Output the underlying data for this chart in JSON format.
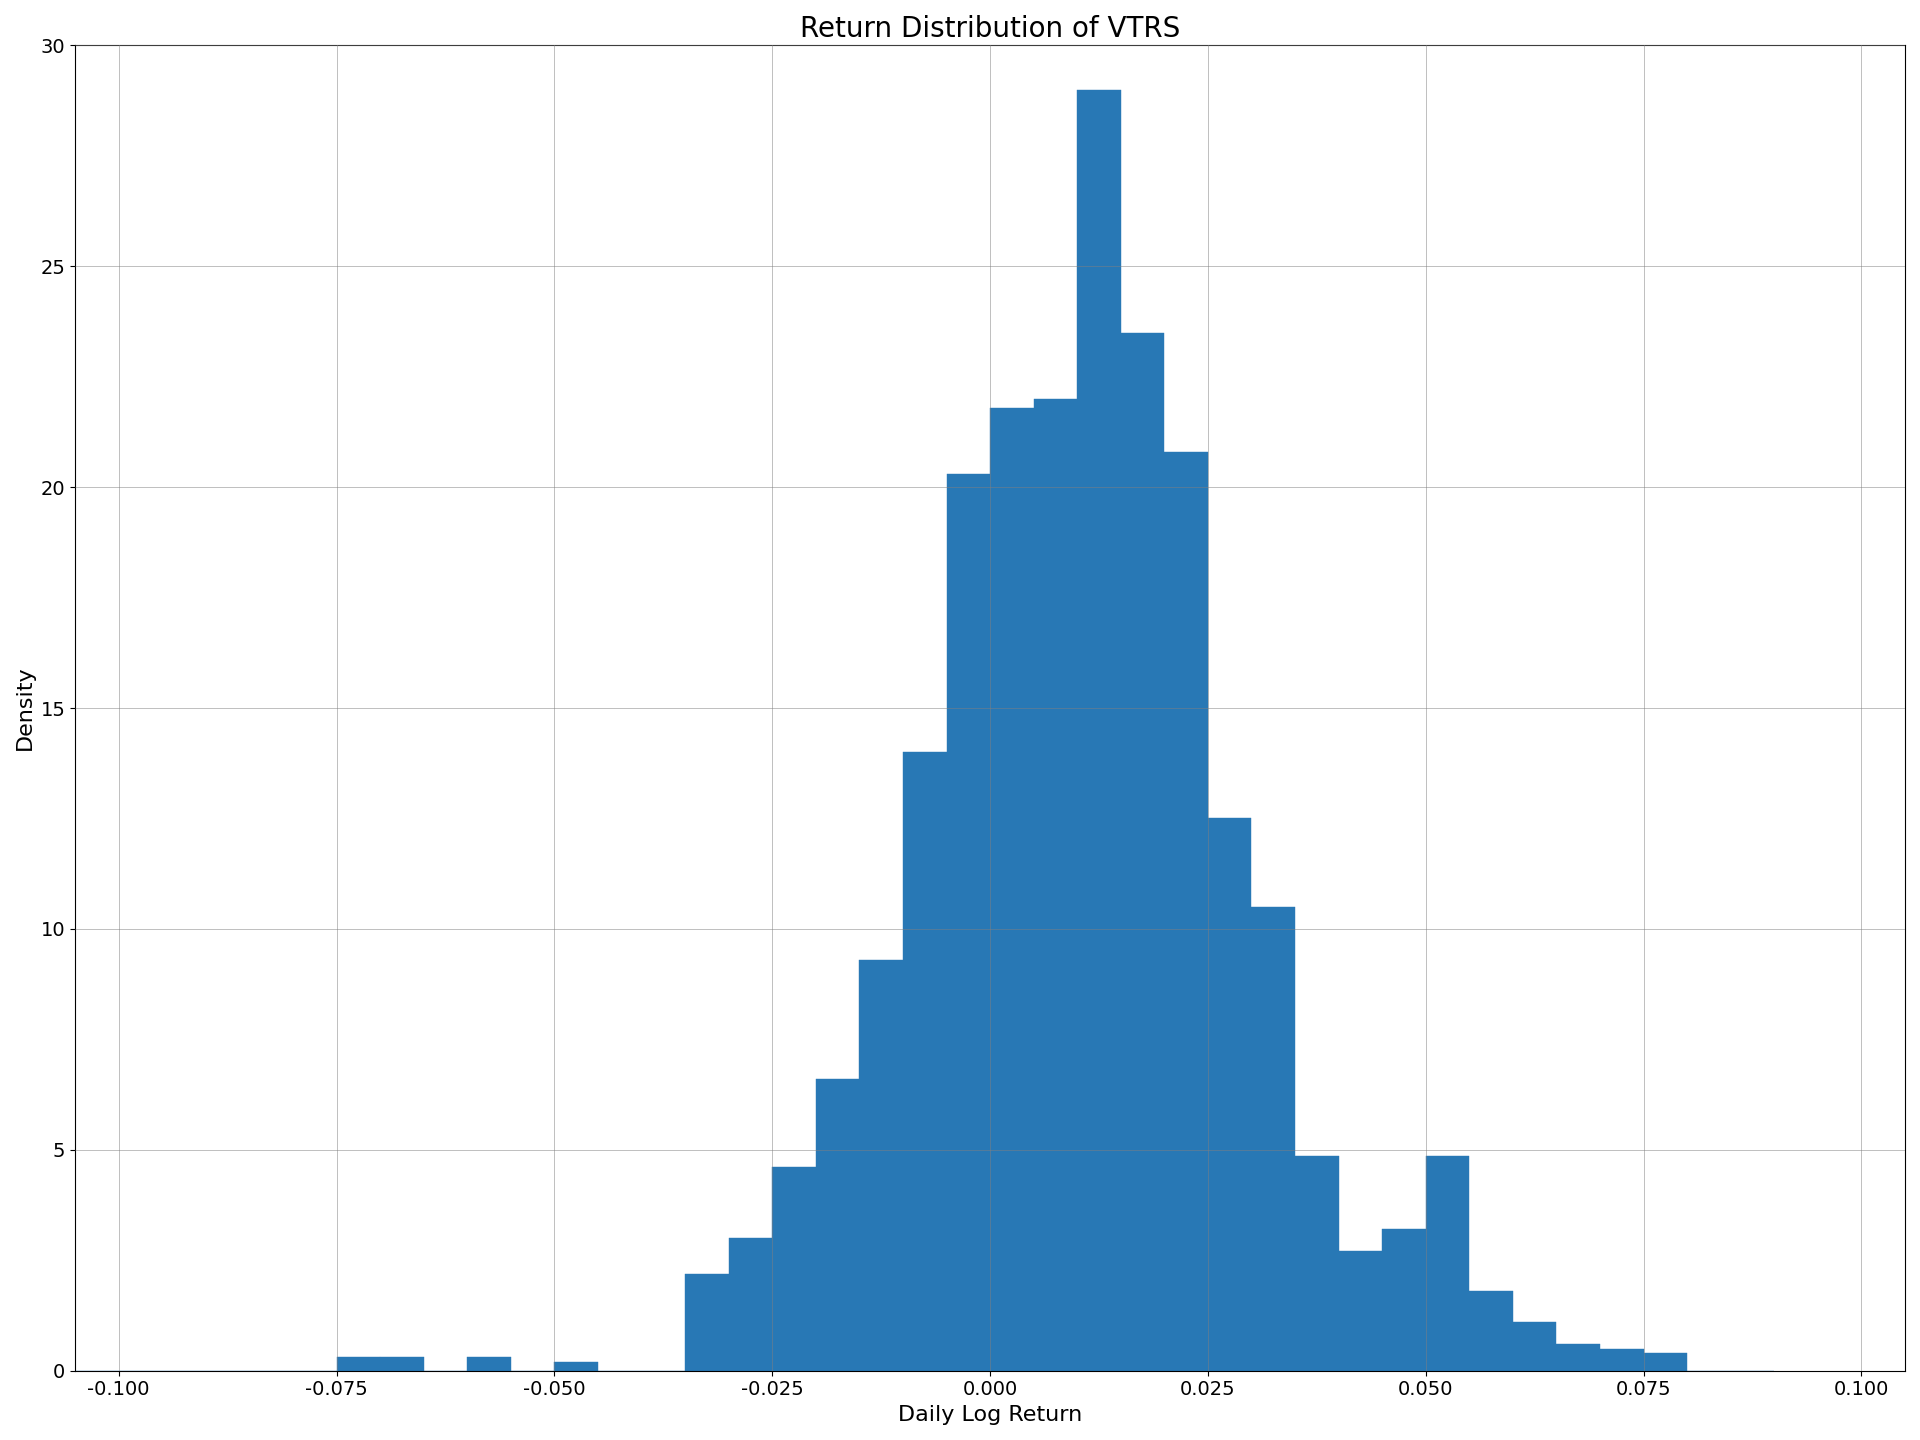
{
  "title": "Return Distribution of VTRS",
  "xlabel": "Daily Log Return",
  "ylabel": "Density",
  "bar_color": "#2878b5",
  "xlim": [
    -0.105,
    0.105
  ],
  "ylim": [
    0,
    30
  ],
  "xticks": [
    -0.1,
    -0.075,
    -0.05,
    -0.025,
    0.0,
    0.025,
    0.05,
    0.075,
    0.1
  ],
  "yticks": [
    0,
    5,
    10,
    15,
    20,
    25,
    30
  ],
  "bin_edges": [
    -0.11,
    -0.105,
    -0.1,
    -0.095,
    -0.09,
    -0.085,
    -0.08,
    -0.075,
    -0.07,
    -0.065,
    -0.06,
    -0.055,
    -0.05,
    -0.045,
    -0.04,
    -0.035,
    -0.03,
    -0.025,
    -0.02,
    -0.015,
    -0.01,
    -0.005,
    0.0,
    0.005,
    0.01,
    0.015,
    0.02,
    0.025,
    0.03,
    0.035,
    0.04,
    0.045,
    0.05,
    0.055,
    0.06,
    0.065,
    0.07,
    0.075,
    0.08,
    0.085,
    0.09
  ],
  "heights": [
    0.0,
    0.0,
    0.0,
    0.0,
    0.0,
    0.0,
    0.0,
    0.3,
    0.3,
    0.0,
    0.3,
    0.0,
    0.2,
    0.0,
    0.0,
    2.2,
    3.0,
    4.6,
    6.6,
    9.3,
    14.0,
    20.3,
    21.8,
    22.0,
    29.0,
    23.5,
    20.8,
    12.5,
    10.5,
    4.85,
    2.7,
    3.2,
    4.85,
    1.8,
    1.1,
    0.6,
    0.5,
    0.4,
    0.0,
    0.0
  ],
  "title_fontsize": 20,
  "label_fontsize": 16,
  "tick_fontsize": 14,
  "figsize": [
    19.2,
    14.4
  ],
  "dpi": 100
}
